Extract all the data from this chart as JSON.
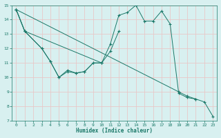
{
  "xlabel": "Humidex (Indice chaleur)",
  "bg_color": "#d8f0f0",
  "plot_bg_color": "#d8f0f0",
  "line_color": "#1a7868",
  "grid_color": "#e8c8c8",
  "xlim": [
    -0.5,
    23.5
  ],
  "ylim": [
    7,
    15
  ],
  "xticks": [
    0,
    1,
    2,
    3,
    4,
    5,
    6,
    7,
    8,
    9,
    10,
    11,
    12,
    13,
    14,
    15,
    16,
    17,
    18,
    19,
    20,
    21,
    22,
    23
  ],
  "yticks": [
    7,
    8,
    9,
    10,
    11,
    12,
    13,
    14,
    15
  ],
  "line_series": [
    {
      "x": [
        0,
        1,
        3,
        4,
        5,
        6,
        7,
        8,
        9,
        10,
        11,
        12,
        13,
        14,
        15,
        16,
        17,
        18,
        19,
        20,
        21,
        22,
        23
      ],
      "y": [
        14.7,
        13.2,
        12.0,
        11.1,
        10.0,
        10.4,
        10.3,
        10.4,
        11.0,
        11.0,
        12.3,
        14.3,
        14.5,
        15.0,
        13.9,
        13.9,
        14.6,
        13.7,
        8.9,
        8.6,
        8.5,
        8.3,
        7.3
      ]
    },
    {
      "x": [
        0,
        1,
        3,
        4,
        5,
        6,
        7,
        8,
        9,
        10,
        11,
        12
      ],
      "y": [
        14.7,
        13.2,
        12.0,
        11.1,
        10.0,
        10.5,
        10.3,
        10.4,
        11.0,
        11.0,
        11.8,
        13.2
      ]
    },
    {
      "x": [
        0,
        1,
        10
      ],
      "y": [
        14.7,
        13.2,
        11.0
      ]
    },
    {
      "x": [
        0,
        19,
        20,
        21
      ],
      "y": [
        14.7,
        9.0,
        8.7,
        8.5
      ]
    }
  ]
}
